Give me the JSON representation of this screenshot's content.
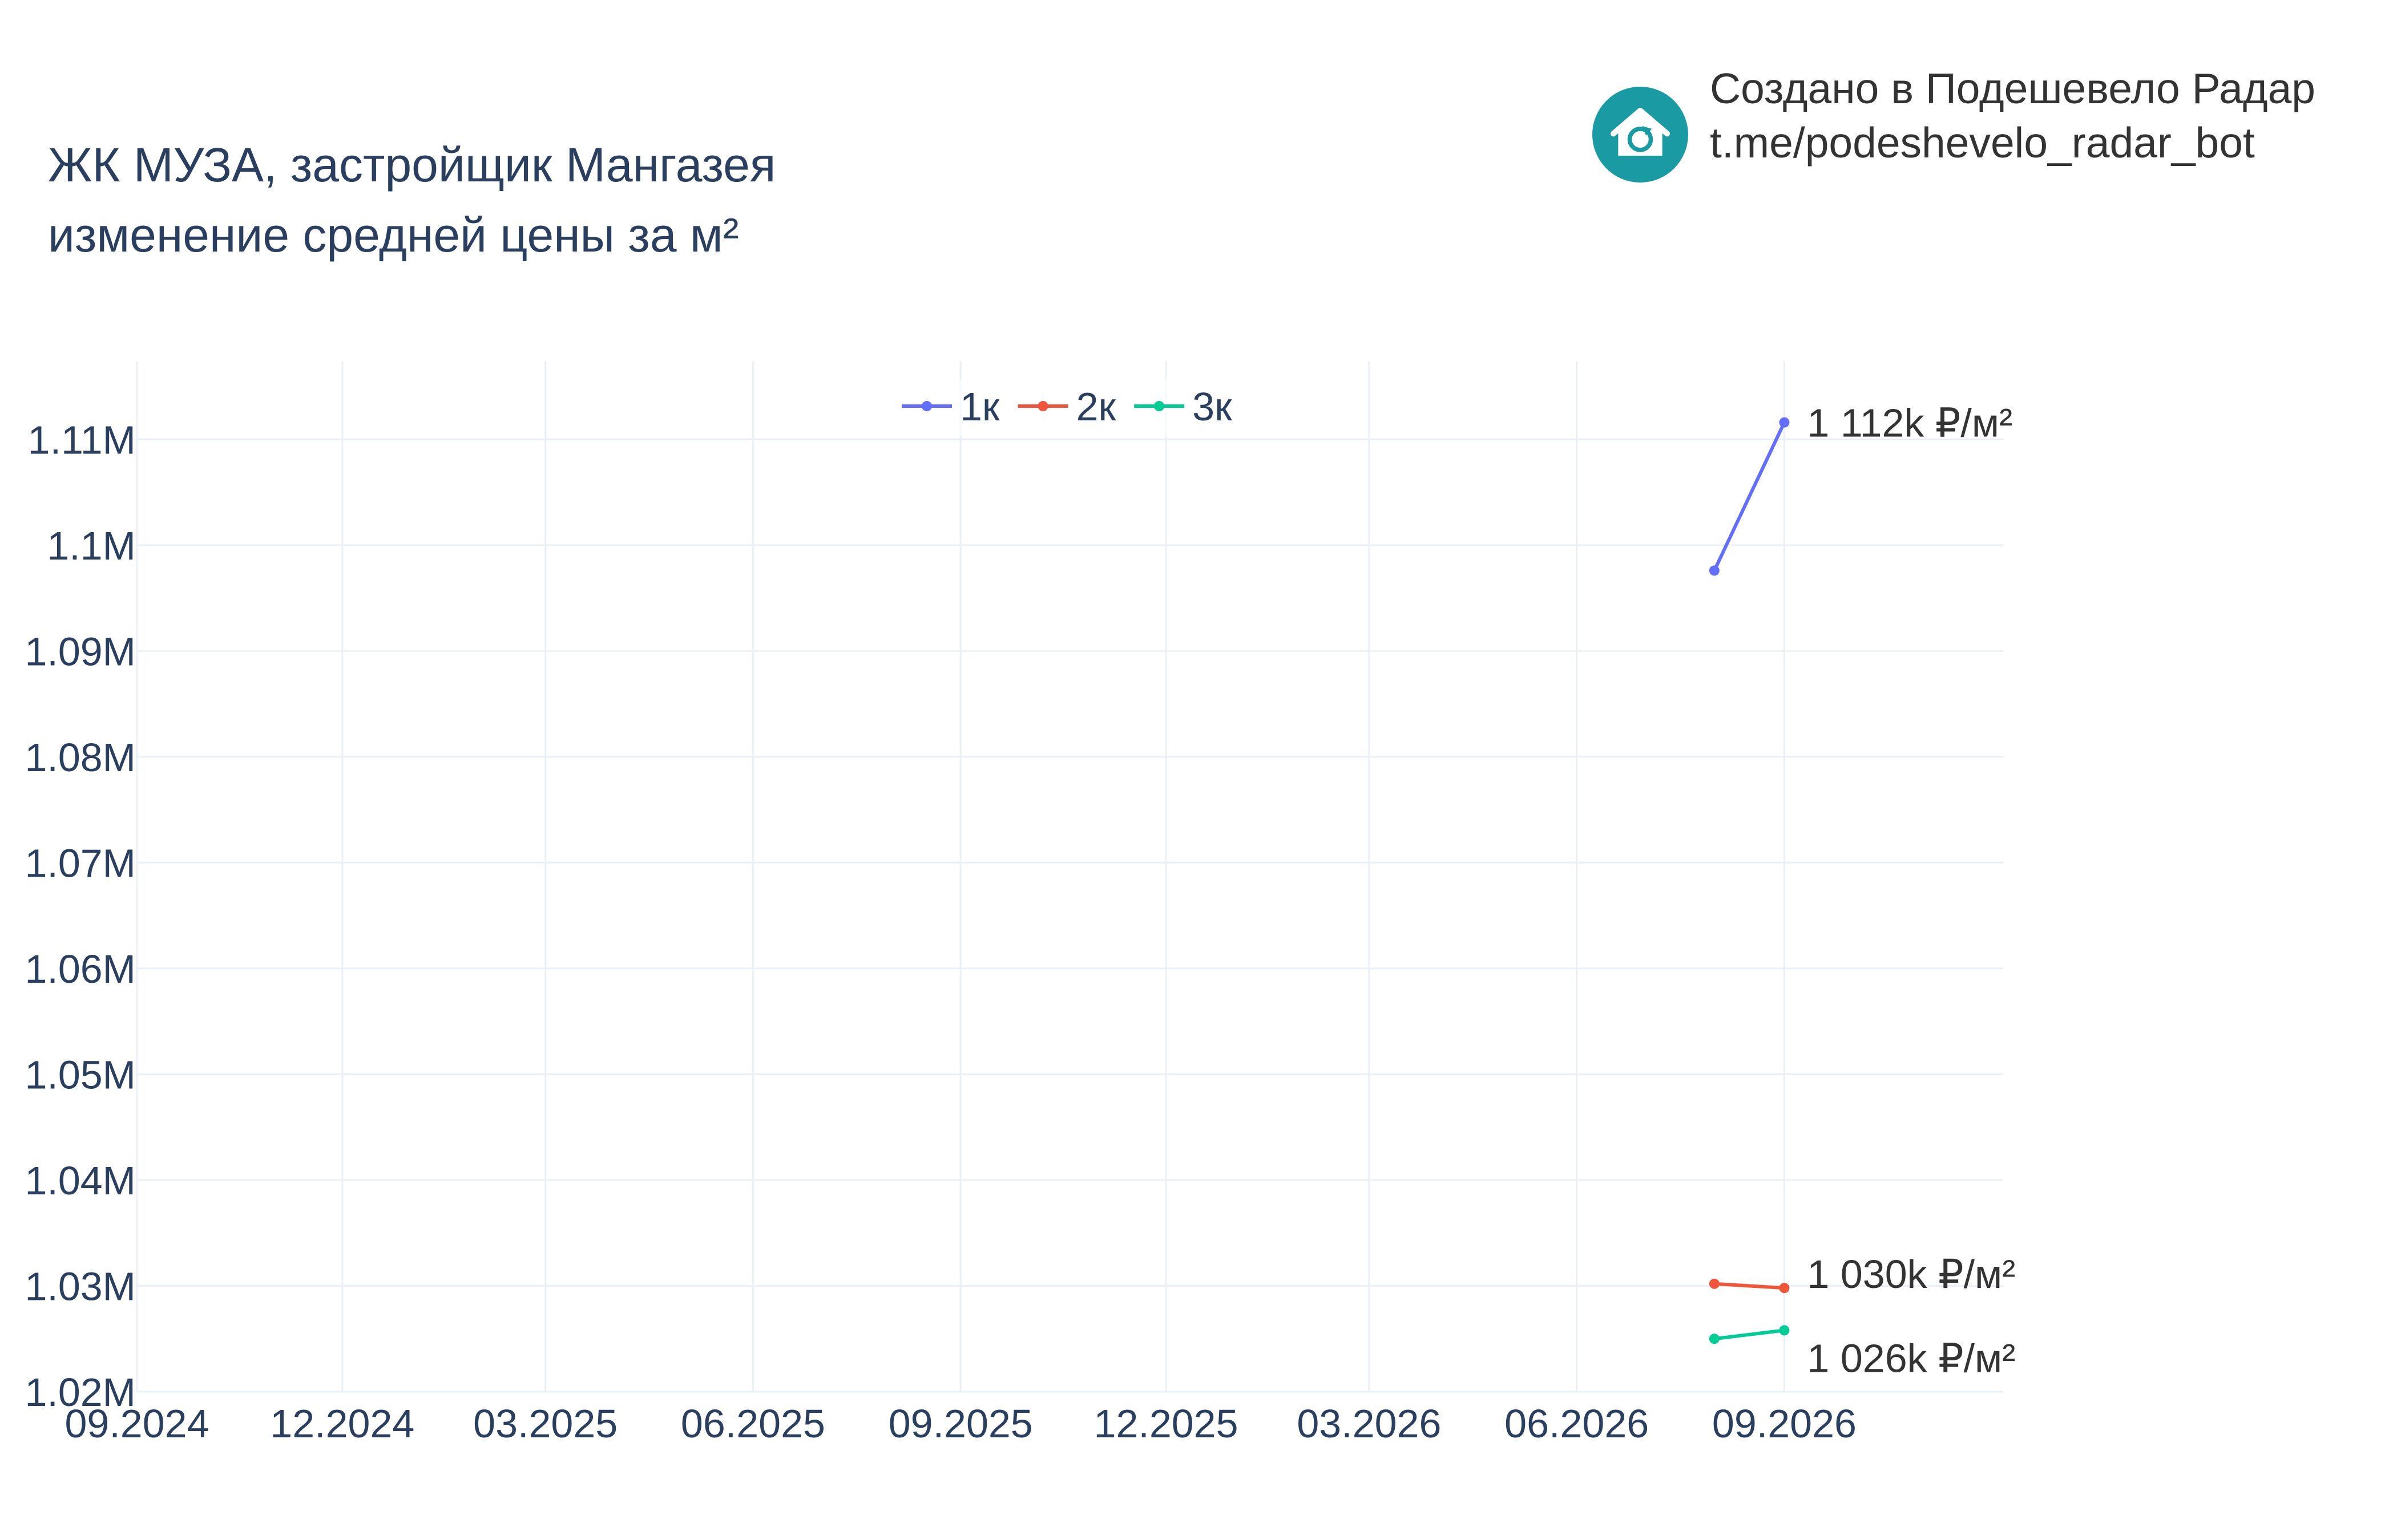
{
  "title": {
    "line1": "ЖК МУЗА, застройщик Мангазея",
    "line2": "изменение средней цены за м²"
  },
  "brand": {
    "line1": "Создано в Подешевело Радар",
    "line2": "t.me/podeshevelo_radar_bot",
    "logo_icon": "house-refresh-icon",
    "logo_color": "#1a9ba3"
  },
  "chart_data": {
    "type": "line",
    "x_tick_labels": [
      "09.2024",
      "12.2024",
      "03.2025",
      "06.2025",
      "09.2025",
      "12.2025",
      "03.2026",
      "06.2026",
      "09.2026"
    ],
    "y_tick_labels": [
      "1.02M",
      "1.03M",
      "1.04M",
      "1.05M",
      "1.06M",
      "1.07M",
      "1.08M",
      "1.09M",
      "1.1M",
      "1.11M"
    ],
    "y_ticks": [
      1020000,
      1030000,
      1040000,
      1050000,
      1060000,
      1070000,
      1080000,
      1090000,
      1100000,
      1110000
    ],
    "xlim": [
      "2024-09-01",
      "2026-12-07"
    ],
    "ylim": [
      1020000,
      1117400
    ],
    "grid": true,
    "legend_position": "top-center",
    "series": [
      {
        "name": "1к",
        "color": "#636efa",
        "x": [
          "2026-08-01",
          "2026-09-01"
        ],
        "y": [
          1097600,
          1111600
        ],
        "end_label": "1 112k ₽/м²"
      },
      {
        "name": "2к",
        "color": "#ef553b",
        "x": [
          "2026-08-01",
          "2026-09-01"
        ],
        "y": [
          1030200,
          1029800
        ],
        "end_label": "1 030k ₽/м²"
      },
      {
        "name": "3к",
        "color": "#00cc96",
        "x": [
          "2026-08-01",
          "2026-09-01"
        ],
        "y": [
          1025000,
          1025800
        ],
        "end_label": "1 026k ₽/м²"
      }
    ]
  }
}
